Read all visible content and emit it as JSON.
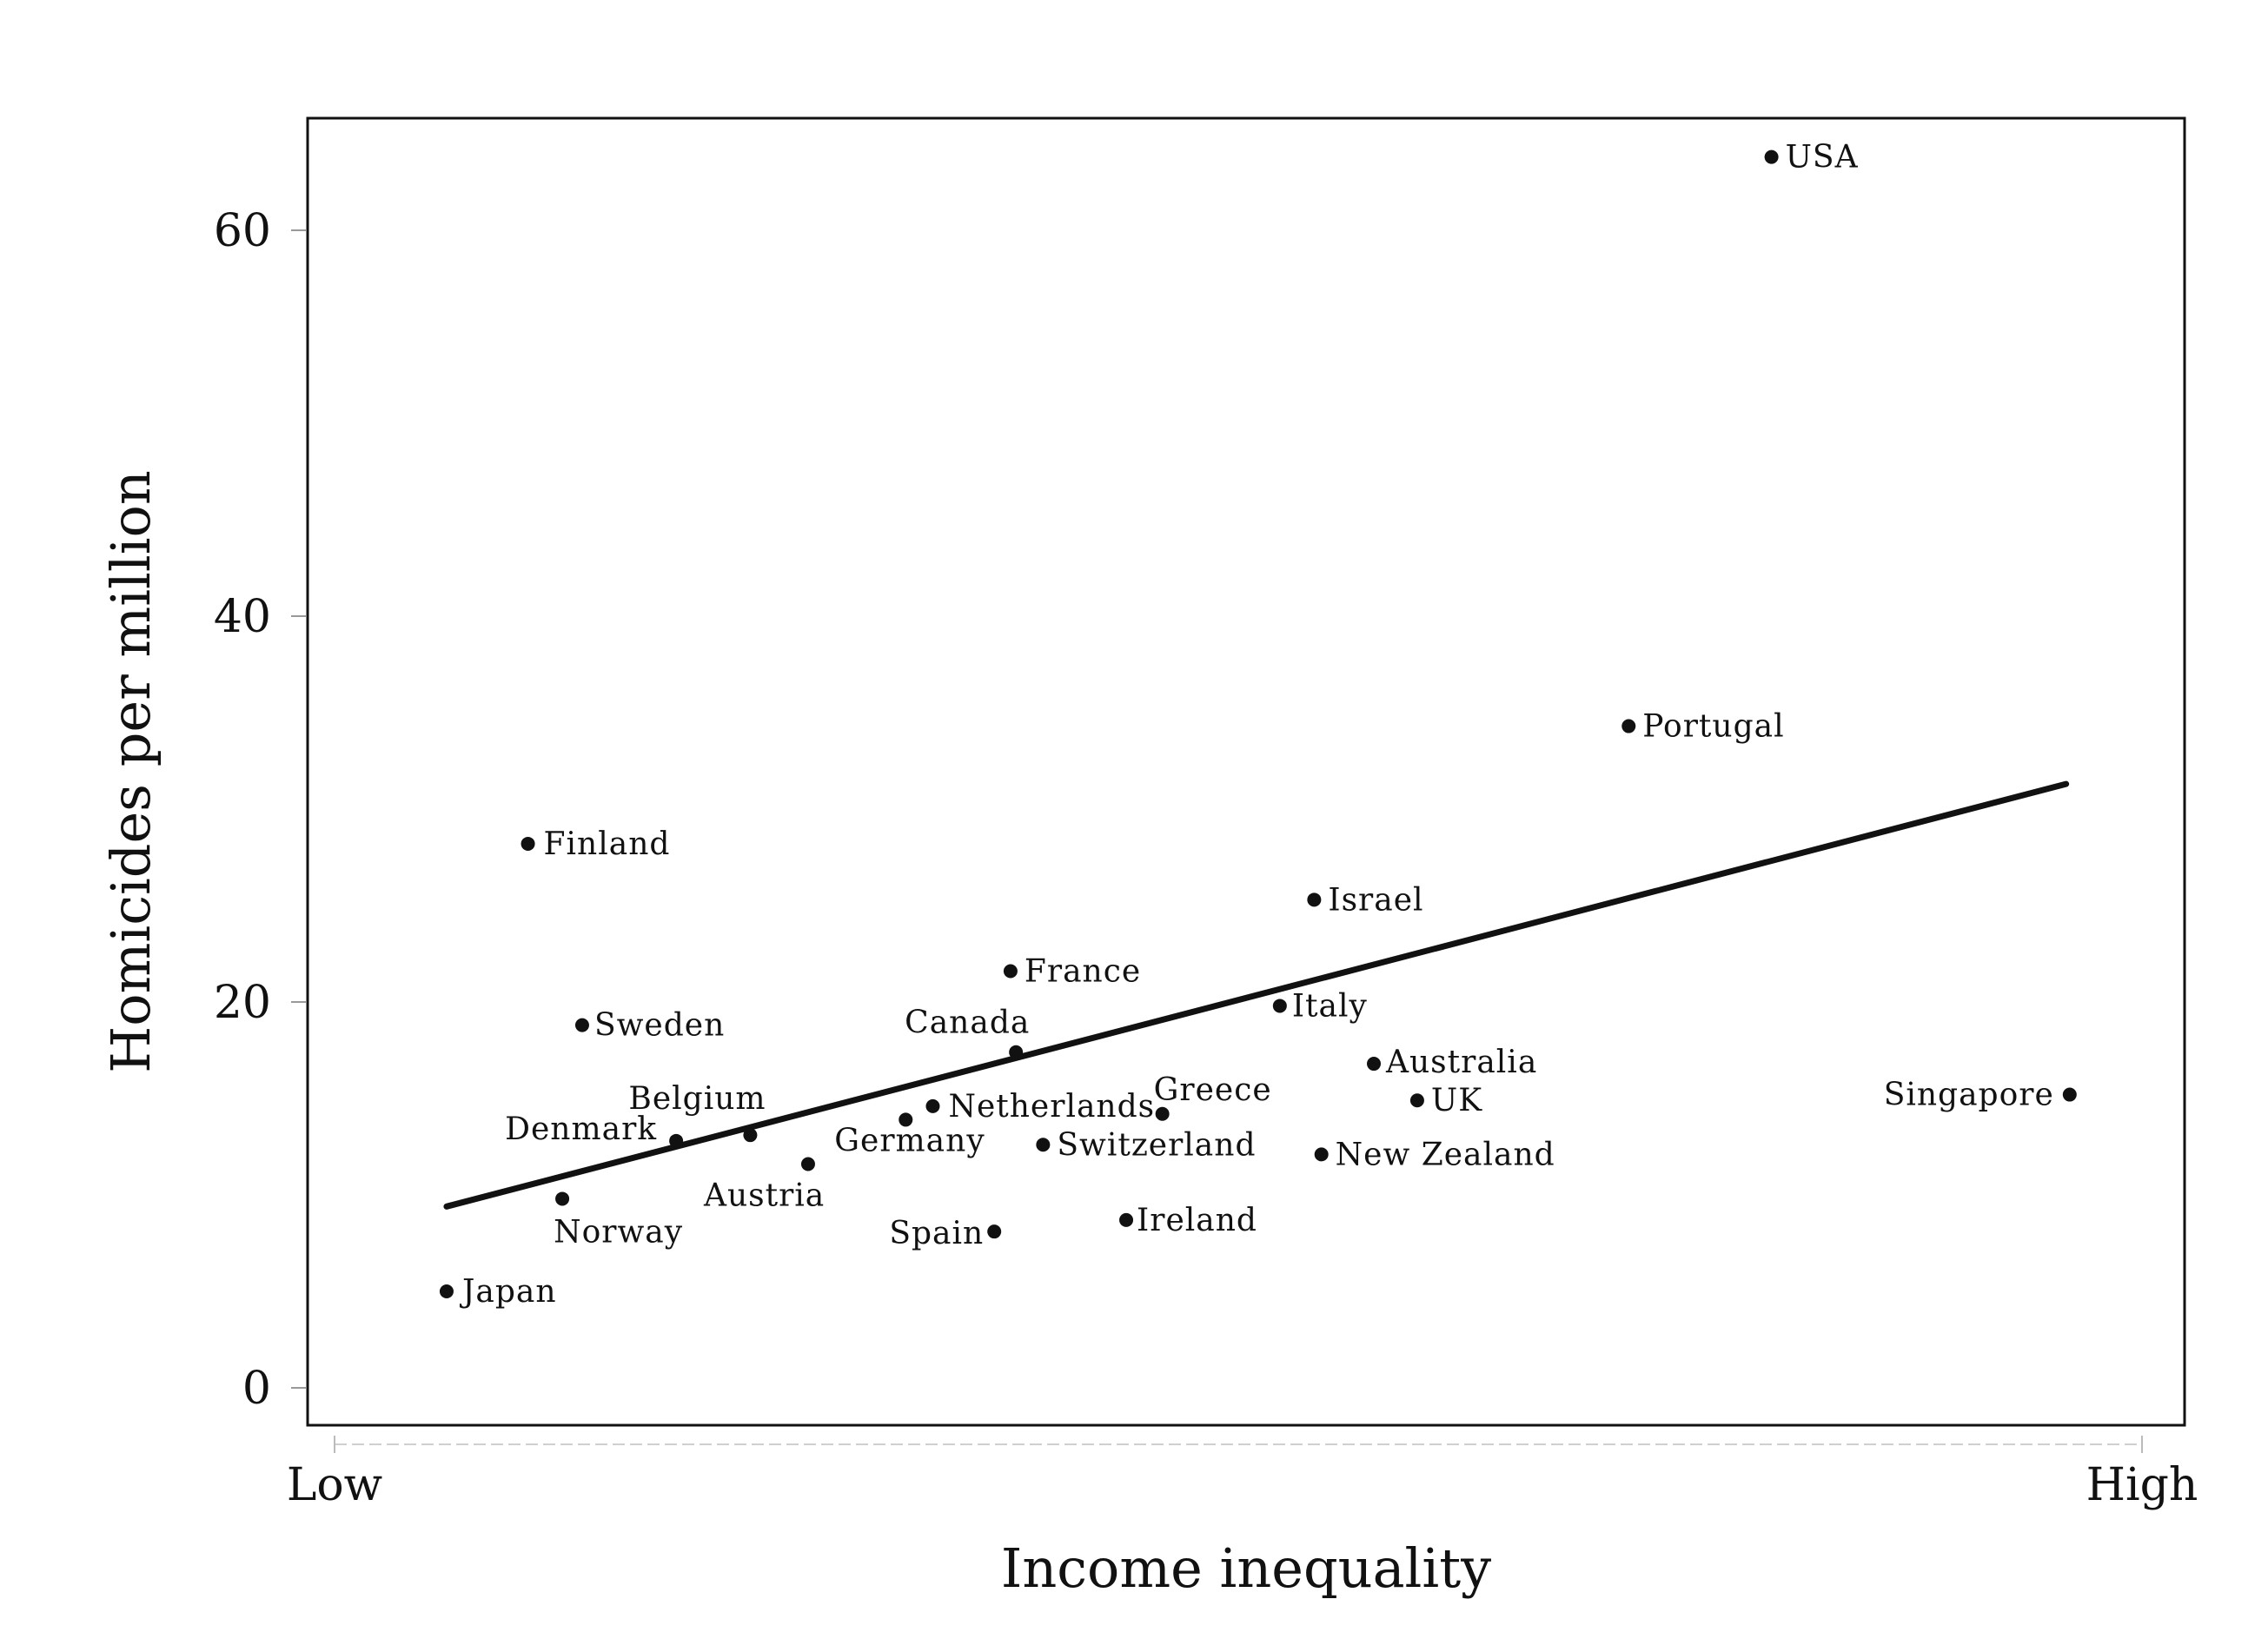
{
  "chart_data": {
    "type": "scatter",
    "title": "",
    "xlabel": "Income inequality",
    "ylabel": "Homicides per million",
    "x_tick_labels": [
      "Low",
      "High"
    ],
    "xlim": [
      0,
      100
    ],
    "ylim": [
      0,
      60
    ],
    "yticks": [
      0,
      20,
      40,
      60
    ],
    "y_tick_labels": [
      "0",
      "20",
      "40",
      "60"
    ],
    "grid": false,
    "legend": "none",
    "points": [
      {
        "label": "Japan",
        "x": 6.2,
        "y": 5.0
      },
      {
        "label": "Finland",
        "x": 10.7,
        "y": 28.2
      },
      {
        "label": "Norway",
        "x": 12.6,
        "y": 9.8
      },
      {
        "label": "Sweden",
        "x": 13.7,
        "y": 18.8
      },
      {
        "label": "Denmark",
        "x": 18.9,
        "y": 12.8
      },
      {
        "label": "Belgium",
        "x": 23.0,
        "y": 13.1
      },
      {
        "label": "Austria",
        "x": 26.2,
        "y": 11.6
      },
      {
        "label": "Germany",
        "x": 31.6,
        "y": 13.9
      },
      {
        "label": "Netherlands",
        "x": 33.1,
        "y": 14.6
      },
      {
        "label": "Spain",
        "x": 36.5,
        "y": 8.1
      },
      {
        "label": "France",
        "x": 37.4,
        "y": 21.6
      },
      {
        "label": "Canada",
        "x": 37.7,
        "y": 17.4
      },
      {
        "label": "Switzerland",
        "x": 39.2,
        "y": 12.6
      },
      {
        "label": "Ireland",
        "x": 43.8,
        "y": 8.7
      },
      {
        "label": "Greece",
        "x": 45.8,
        "y": 14.2
      },
      {
        "label": "Italy",
        "x": 52.3,
        "y": 19.8
      },
      {
        "label": "Israel",
        "x": 54.2,
        "y": 25.3
      },
      {
        "label": "New Zealand",
        "x": 54.6,
        "y": 12.1
      },
      {
        "label": "Australia",
        "x": 57.5,
        "y": 16.8
      },
      {
        "label": "UK",
        "x": 59.9,
        "y": 14.9
      },
      {
        "label": "Portugal",
        "x": 71.6,
        "y": 34.3
      },
      {
        "label": "USA",
        "x": 79.5,
        "y": 63.8
      },
      {
        "label": "Singapore",
        "x": 96.0,
        "y": 15.2
      }
    ],
    "trendline": {
      "x": [
        6.2,
        95.8
      ],
      "y": [
        9.4,
        31.3
      ]
    }
  }
}
